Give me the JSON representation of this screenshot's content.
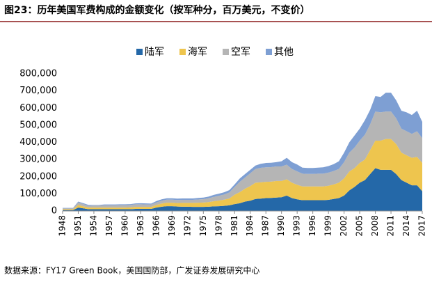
{
  "chart_data": {
    "type": "stacked_area",
    "title": "图23：历年美国军费构成的金额变化（按军种分，百万美元，不变价）",
    "source": "数据来源：FY17 Green Book，美国国防部，广发证券发展研究中心",
    "x": [
      1948,
      1949,
      1950,
      1951,
      1952,
      1953,
      1954,
      1955,
      1956,
      1957,
      1958,
      1959,
      1960,
      1961,
      1962,
      1963,
      1964,
      1965,
      1966,
      1967,
      1968,
      1969,
      1970,
      1971,
      1972,
      1973,
      1974,
      1975,
      1976,
      1977,
      1978,
      1979,
      1980,
      1981,
      1982,
      1983,
      1984,
      1985,
      1986,
      1987,
      1988,
      1989,
      1990,
      1991,
      1992,
      1993,
      1994,
      1995,
      1996,
      1997,
      1998,
      1999,
      2000,
      2001,
      2002,
      2003,
      2004,
      2005,
      2006,
      2007,
      2008,
      2009,
      2010,
      2011,
      2012,
      2013,
      2014,
      2015,
      2016,
      2017
    ],
    "xlim": [
      1948,
      2017
    ],
    "xticks": [
      1948,
      1951,
      1954,
      1957,
      1960,
      1963,
      1966,
      1969,
      1972,
      1975,
      1978,
      1981,
      1984,
      1987,
      1990,
      1993,
      1996,
      1999,
      2002,
      2005,
      2008,
      2011,
      2014,
      2017
    ],
    "ylim": [
      0,
      800000
    ],
    "yticks": [
      {
        "value": 0,
        "label": "0"
      },
      {
        "value": 100000,
        "label": "100,000"
      },
      {
        "value": 200000,
        "label": "200,000"
      },
      {
        "value": 300000,
        "label": "300,000"
      },
      {
        "value": 400000,
        "label": "400,000"
      },
      {
        "value": 500000,
        "label": "500,000"
      },
      {
        "value": 600000,
        "label": "600,000"
      },
      {
        "value": 700000,
        "label": "700,000"
      },
      {
        "value": 800000,
        "label": "800,000"
      }
    ],
    "grid": false,
    "legend": "top",
    "series": [
      {
        "name": "陆军",
        "color": "#2468a8",
        "values": [
          5000,
          5000,
          5000,
          20000,
          15000,
          10000,
          10000,
          10000,
          10000,
          10000,
          10000,
          10000,
          10000,
          10000,
          12000,
          12000,
          12000,
          12000,
          20000,
          25000,
          28000,
          28000,
          26000,
          25000,
          25000,
          24000,
          24000,
          24000,
          25000,
          27000,
          28000,
          30000,
          33000,
          40000,
          45000,
          55000,
          60000,
          70000,
          72000,
          75000,
          76000,
          78000,
          80000,
          90000,
          75000,
          68000,
          63000,
          63000,
          63000,
          63000,
          63000,
          65000,
          70000,
          75000,
          90000,
          120000,
          140000,
          165000,
          180000,
          215000,
          250000,
          240000,
          240000,
          240000,
          215000,
          180000,
          165000,
          150000,
          150000,
          115000
        ]
      },
      {
        "name": "海军",
        "color": "#eec54e",
        "values": [
          5000,
          5000,
          5000,
          15000,
          12000,
          10000,
          10000,
          10000,
          10000,
          10000,
          10000,
          10000,
          10000,
          11000,
          12000,
          12000,
          12000,
          12000,
          15000,
          18000,
          20000,
          20000,
          20000,
          22000,
          22000,
          23000,
          24000,
          25000,
          27000,
          30000,
          33000,
          36000,
          40000,
          55000,
          65000,
          75000,
          85000,
          95000,
          95000,
          95000,
          95000,
          97000,
          95000,
          95000,
          90000,
          85000,
          80000,
          80000,
          80000,
          80000,
          80000,
          82000,
          85000,
          90000,
          100000,
          110000,
          110000,
          115000,
          120000,
          140000,
          160000,
          170000,
          180000,
          180000,
          175000,
          160000,
          160000,
          160000,
          165000,
          165000
        ]
      },
      {
        "name": "空军",
        "color": "#b5b5b5",
        "values": [
          5000,
          5000,
          5000,
          15000,
          13000,
          10000,
          12000,
          12000,
          13000,
          13000,
          13000,
          14000,
          14000,
          14000,
          15000,
          15000,
          14000,
          14000,
          15000,
          17000,
          18000,
          18000,
          18000,
          18000,
          18000,
          18000,
          19000,
          20000,
          22000,
          25000,
          28000,
          30000,
          35000,
          45000,
          60000,
          65000,
          75000,
          80000,
          85000,
          85000,
          85000,
          85000,
          85000,
          85000,
          80000,
          78000,
          75000,
          73000,
          73000,
          75000,
          75000,
          77000,
          78000,
          80000,
          95000,
          110000,
          120000,
          130000,
          145000,
          150000,
          170000,
          165000,
          160000,
          160000,
          150000,
          140000,
          140000,
          140000,
          150000,
          145000
        ]
      },
      {
        "name": "其他",
        "color": "#7e9fd3",
        "values": [
          3000,
          3000,
          3000,
          5000,
          5000,
          5000,
          3000,
          3000,
          5000,
          5000,
          5000,
          5000,
          5000,
          5000,
          5000,
          6000,
          6000,
          5000,
          8000,
          8000,
          8000,
          8000,
          8000,
          8000,
          8000,
          8000,
          9000,
          9000,
          10000,
          12000,
          12000,
          13000,
          14000,
          15000,
          20000,
          20000,
          20000,
          20000,
          23000,
          25000,
          25000,
          25000,
          30000,
          40000,
          40000,
          40000,
          35000,
          35000,
          35000,
          35000,
          37000,
          38000,
          40000,
          45000,
          55000,
          60000,
          70000,
          70000,
          85000,
          85000,
          90000,
          90000,
          110000,
          110000,
          105000,
          105000,
          110000,
          110000,
          120000,
          95000
        ]
      }
    ]
  }
}
